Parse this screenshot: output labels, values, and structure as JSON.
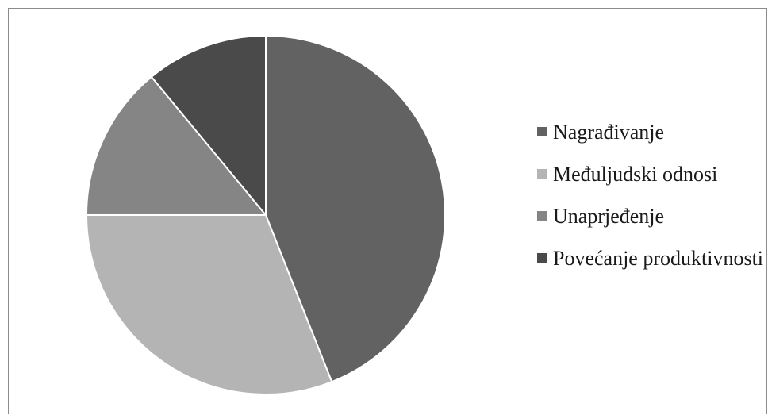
{
  "chart_data": {
    "type": "pie",
    "title": "",
    "categories": [
      "Nagrađivanje",
      "Međuljudski odnosi",
      "Unaprjeđenje",
      "Povećanje produktivnosti"
    ],
    "values": [
      44,
      31,
      14,
      11
    ],
    "colors": [
      "#626262",
      "#b4b4b4",
      "#858585",
      "#4a4a4a"
    ],
    "start_angle_deg": 0,
    "direction": "clockwise",
    "legend_position": "right"
  }
}
